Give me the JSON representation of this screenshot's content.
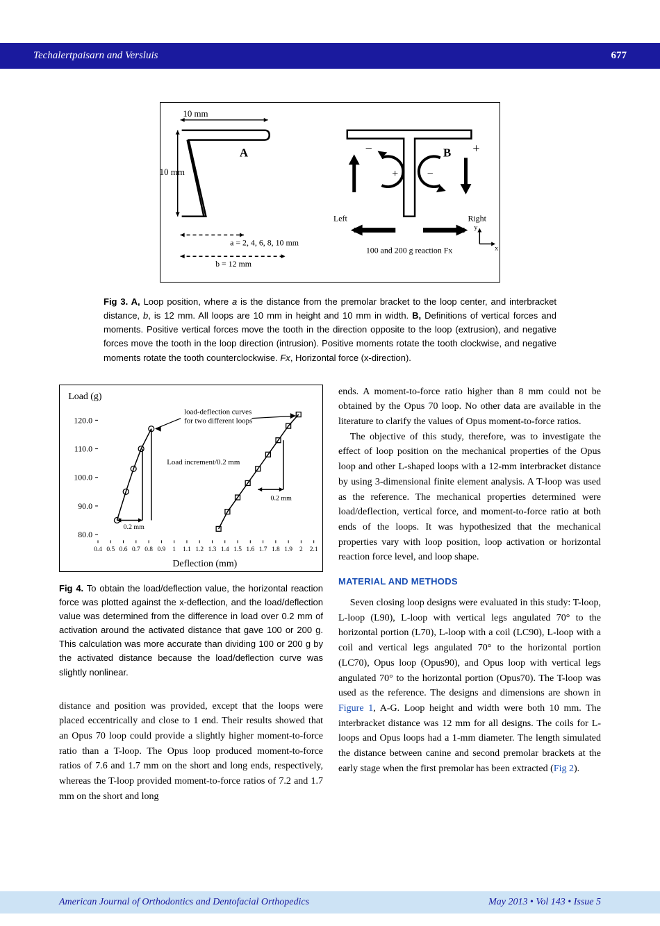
{
  "header": {
    "authors": "Techalertpaisarn and Versluis",
    "page": "677"
  },
  "fig3": {
    "top_dim": "10 mm",
    "left_dim": "10 mm",
    "panelA": "A",
    "panelB": "B",
    "a_label": "a = 2, 4, 6, 8, 10 mm",
    "b_label": "b = 12 mm",
    "left_label": "Left",
    "right_label": "Right",
    "fx_label": "100 and 200 g reaction Fx",
    "axis_x": "x",
    "axis_y": "y",
    "plus": "+",
    "minus": "−",
    "colors": {
      "stroke": "#000000",
      "bg": "#ffffff"
    }
  },
  "fig3_caption": "Fig 3. A, Loop position, where a is the distance from the premolar bracket to the loop center, and interbracket distance, b, is 12 mm. All loops are 10 mm in height and 10 mm in width. B, Definitions of vertical forces and moments. Positive vertical forces move the tooth in the direction opposite to the loop (extrusion), and negative forces move the tooth in the loop direction (intrusion). Positive moments rotate the tooth clockwise, and negative moments rotate the tooth counterclockwise. Fx, Horizontal force (x-direction).",
  "fig4": {
    "y_label": "Load (g)",
    "x_label": "Deflection (mm)",
    "annotation1": "load-deflection curves",
    "annotation1b": "for two different loops",
    "annotation2": "Load increment/0.2 mm",
    "annotation3": "0.2 mm",
    "annotation4": "0.2 mm",
    "y_ticks": [
      "80.0",
      "90.0",
      "100.0",
      "110.0",
      "120.0"
    ],
    "x_ticks": [
      "0.4",
      "0.5",
      "0.6",
      "0.7",
      "0.8",
      "0.9",
      "1",
      "1.1",
      "1.2",
      "1.3",
      "1.4",
      "1.5",
      "1.6",
      "1.7",
      "1.8",
      "1.9",
      "2",
      "2.1"
    ],
    "series1": {
      "marker": "circle",
      "points": [
        [
          0.55,
          85
        ],
        [
          0.62,
          95
        ],
        [
          0.68,
          103
        ],
        [
          0.74,
          110
        ],
        [
          0.82,
          117
        ]
      ]
    },
    "series2": {
      "marker": "square",
      "points": [
        [
          1.35,
          82
        ],
        [
          1.42,
          88
        ],
        [
          1.5,
          93
        ],
        [
          1.58,
          98
        ],
        [
          1.66,
          103
        ],
        [
          1.74,
          108
        ],
        [
          1.82,
          113
        ],
        [
          1.9,
          118
        ],
        [
          1.98,
          122
        ]
      ]
    },
    "xlim": [
      0.4,
      2.1
    ],
    "ylim": [
      78,
      125
    ],
    "colors": {
      "line": "#000000",
      "bg": "#ffffff",
      "axis": "#000000"
    }
  },
  "fig4_caption": "Fig 4. To obtain the load/deflection value, the horizontal reaction force was plotted against the x-deflection, and the load/deflection value was determined from the difference in load over 0.2 mm of activation around the activated distance that gave 100 or 200 g. This calculation was more accurate than dividing 100 or 200 g by the activated distance because the load/deflection curve was slightly nonlinear.",
  "body": {
    "p1": "distance and position was provided, except that the loops were placed eccentrically and close to 1 end. Their results showed that an Opus 70 loop could provide a slightly higher moment-to-force ratio than a T-loop. The Opus loop produced moment-to-force ratios of 7.6 and 1.7 mm on the short and long ends, respectively, whereas the T-loop provided moment-to-force ratios of 7.2 and 1.7 mm on the short and long",
    "p2": "ends. A moment-to-force ratio higher than 8 mm could not be obtained by the Opus 70 loop. No other data are available in the literature to clarify the values of Opus moment-to-force ratios.",
    "p3": "The objective of this study, therefore, was to investigate the effect of loop position on the mechanical properties of the Opus loop and other L-shaped loops with a 12-mm interbracket distance by using 3-dimensional finite element analysis. A T-loop was used as the reference. The mechanical properties determined were load/deflection, vertical force, and moment-to-force ratio at both ends of the loops. It was hypothesized that the mechanical properties vary with loop position, loop activation or horizontal reaction force level, and loop shape.",
    "heading": "MATERIAL AND METHODS",
    "p4a": "Seven closing loop designs were evaluated in this study: T-loop, L-loop (L90), L-loop with vertical legs angulated 70° to the horizontal portion (L70), L-loop with a coil (LC90), L-loop with a coil and vertical legs angulated 70° to the horizontal portion (LC70), Opus loop (Opus90), and Opus loop with vertical legs angulated 70° to the horizontal portion (Opus70). The T-loop was used as the reference. The designs and dimensions are shown in ",
    "p4_link1": "Figure 1",
    "p4b": ", A-G. Loop height and width were both 10 mm. The interbracket distance was 12 mm for all designs. The coils for L-loops and Opus loops had a 1-mm diameter. The length simulated the distance between canine and second premolar brackets at the early stage when the first premolar has been extracted (",
    "p4_link2": "Fig 2",
    "p4c": ")."
  },
  "footer": {
    "journal": "American Journal of Orthodontics and Dentofacial Orthopedics",
    "issue": "May 2013 • Vol 143 • Issue 5"
  }
}
